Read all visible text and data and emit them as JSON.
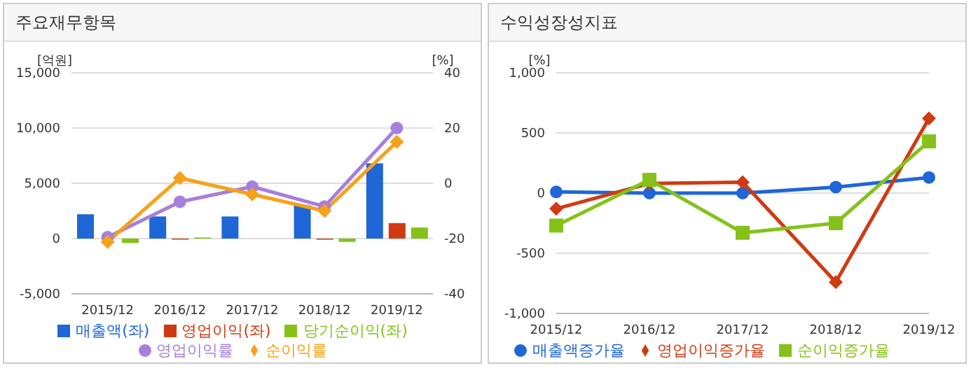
{
  "chart_data": [
    {
      "type": "bar",
      "title": "주요재무항목",
      "ylabel": "[억원]",
      "y2label": "[%]",
      "categories": [
        "2015/12",
        "2016/12",
        "2017/12",
        "2018/12",
        "2019/12"
      ],
      "series": [
        {
          "name": "매출액(좌)",
          "color": "#1f66d6",
          "values": [
            2200,
            2000,
            2000,
            3000,
            6800
          ]
        },
        {
          "name": "영업이익(좌)",
          "color": "#d03a12",
          "values": [
            null,
            -100,
            0,
            -100,
            1400
          ]
        },
        {
          "name": "당기순이익(좌)",
          "color": "#84c21a",
          "values": [
            -400,
            100,
            0,
            -300,
            1000
          ]
        },
        {
          "name": "영업이익률",
          "type": "line",
          "axis": "y2",
          "marker": "circle",
          "color": "#a77fdc",
          "values": [
            -19.5,
            -6.7,
            -1.2,
            -8.4,
            20
          ]
        },
        {
          "name": "순이익률",
          "type": "line",
          "axis": "y2",
          "marker": "diamond",
          "color": "#f7a11a",
          "values": [
            -21.2,
            1.9,
            -4,
            -10,
            15
          ]
        }
      ],
      "ylim": [
        -5000,
        15000
      ],
      "yticks": [
        {
          "value": -5000,
          "label": "-5,000"
        },
        0,
        {
          "value": 5000,
          "label": "5,000"
        },
        {
          "value": 10000,
          "label": "10,000"
        },
        {
          "value": 15000,
          "label": "15,000"
        }
      ],
      "y2lim": [
        -40,
        40
      ],
      "y2ticks": [
        -40,
        -20,
        0,
        20,
        40
      ],
      "grid": "y",
      "legend": "bottom"
    },
    {
      "type": "line",
      "title": "수익성장성지표",
      "ylabel": "[%]",
      "categories": [
        "2015/12",
        "2016/12",
        "2017/12",
        "2018/12",
        "2019/12"
      ],
      "series": [
        {
          "name": "매출액증가율",
          "marker": "circle",
          "color": "#1f66d6",
          "values": [
            10,
            0,
            0,
            50,
            130
          ]
        },
        {
          "name": "영업이익증가율",
          "marker": "diamond",
          "color": "#d03a12",
          "values": [
            -130,
            80,
            90,
            -740,
            620
          ]
        },
        {
          "name": "순이익증가율",
          "marker": "square",
          "color": "#84c21a",
          "values": [
            -270,
            110,
            -330,
            -250,
            430
          ]
        }
      ],
      "ylim": [
        -1000,
        1000
      ],
      "yticks": [
        {
          "value": -1000,
          "label": "-1,000"
        },
        -500,
        0,
        500,
        {
          "value": 1000,
          "label": "1,000"
        }
      ],
      "grid": "y",
      "legend": "bottom"
    }
  ]
}
